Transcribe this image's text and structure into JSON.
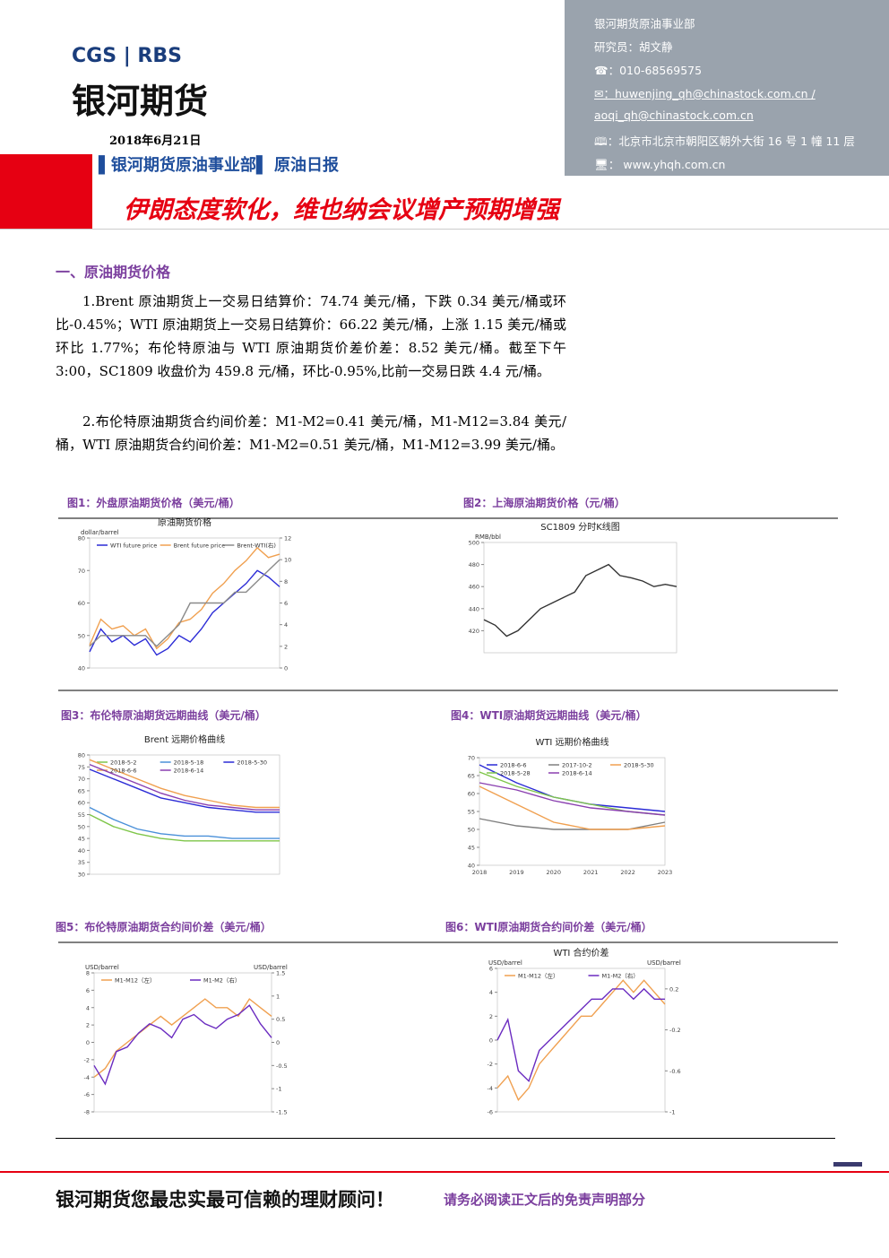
{
  "header": {
    "logo_en": "CGS | RBS",
    "logo_cn": "银河期货",
    "date": "2018年6月21日",
    "dept_line": "▌银河期货原油事业部▌ 原油日报",
    "title": "伊朗态度软化，维也纳会议增产预期增强"
  },
  "contact": {
    "dept": "银河期货原油事业部",
    "researcher": "研究员：胡文静",
    "phone": "☎：010-68569575",
    "email1": "✉：huwenjing_qh@chinastock.com.cn /",
    "email2": "aoqi_qh@chinastock.com.cn",
    "address": "🕮：北京市北京市朝阳区朝外大街 16 号 1 幢 11 层",
    "web": "🖥：  www.yhqh.com.cn"
  },
  "section": {
    "heading": "一、原油期货价格",
    "paragraphs": [
      "1.Brent 原油期货上一交易日结算价：74.74 美元/桶，下跌 0.34 美元/桶或环比-0.45%；WTI 原油期货上一交易日结算价：66.22 美元/桶，上涨 1.15 美元/桶或环比 1.77%；布伦特原油与 WTI 原油期货价差价差：8.52 美元/桶。截至下午 3:00，SC1809 收盘价为 459.8 元/桶，环比-0.95%,比前一交易日跌 4.4 元/桶。",
      "2.布伦特原油期货合约间价差：M1-M2=0.41 美元/桶，M1-M12=3.84 美元/桶，WTI 原油期货合约间价差：M1-M2=0.51 美元/桶，M1-M12=3.99 美元/桶。"
    ]
  },
  "figures": [
    {
      "caption": "图1：外盘原油期货价格（美元/桶）",
      "chart": {
        "type": "line",
        "title": "原油期货价格",
        "ylabel": "dollar/barrel",
        "categories": [
          null,
          null,
          null,
          null,
          null,
          null,
          null,
          null,
          null,
          null,
          null,
          null,
          null,
          null,
          null,
          null,
          null,
          null
        ],
        "ylim": [
          40,
          80
        ],
        "yticks": [
          40,
          50,
          60,
          70,
          80
        ],
        "y2lim": [
          0,
          12
        ],
        "y2ticks": [
          0,
          2,
          4,
          6,
          8,
          10,
          12
        ],
        "series": [
          {
            "name": "WTI future price",
            "color": "#2b2bd6",
            "values": [
              45,
              52,
              48,
              50,
              47,
              49,
              44,
              46,
              50,
              48,
              52,
              57,
              60,
              63,
              66,
              70,
              68,
              65
            ]
          },
          {
            "name": "Brent future price",
            "color": "#f0a050",
            "values": [
              47,
              55,
              52,
              53,
              50,
              52,
              46,
              49,
              54,
              55,
              58,
              63,
              66,
              70,
              73,
              77,
              74,
              75
            ]
          },
          {
            "name": "Brent-WTI(右)",
            "color": "#8a8a8a",
            "axis": "y2",
            "values": [
              2,
              3,
              3,
              3,
              3,
              3,
              2,
              3,
              4,
              6,
              6,
              6,
              6,
              7,
              7,
              8,
              9,
              10
            ]
          }
        ]
      }
    },
    {
      "caption": "图2：上海原油期货价格（元/桶）",
      "chart": {
        "type": "line",
        "title": "SC1809 分时K线图",
        "ylabel": "RMB/bbl",
        "categories": [
          null,
          null,
          null,
          null,
          null,
          null,
          null,
          null,
          null,
          null,
          null,
          null,
          null,
          null,
          null,
          null,
          null,
          null
        ],
        "ylim": [
          400,
          500
        ],
        "yticks": [
          420,
          440,
          460,
          480,
          500
        ],
        "series": [
          {
            "color": "#333333",
            "values": [
              430,
              425,
              415,
              420,
              430,
              440,
              445,
              450,
              455,
              470,
              475,
              480,
              470,
              468,
              465,
              460,
              462,
              460
            ]
          }
        ]
      }
    },
    {
      "caption": "图3：布伦特原油期货远期曲线（美元/桶）",
      "chart": {
        "type": "line",
        "title": "Brent 远期价格曲线",
        "categories": [
          null,
          null,
          null,
          null,
          null,
          null,
          null,
          null,
          null
        ],
        "ylim": [
          30,
          80
        ],
        "yticks": [
          30,
          35,
          40,
          45,
          50,
          55,
          60,
          65,
          70,
          75,
          80
        ],
        "series": [
          {
            "name": "2018-5-2",
            "color": "#7fc64a",
            "values": [
              55,
              50,
              47,
              45,
              44,
              44,
              44,
              44,
              44
            ]
          },
          {
            "name": "2018-5-18",
            "color": "#4a90d9",
            "values": [
              58,
              53,
              49,
              47,
              46,
              46,
              45,
              45,
              45
            ]
          },
          {
            "name": "2018-5-30",
            "color": "#2b2bd6",
            "values": [
              74,
              70,
              66,
              62,
              60,
              58,
              57,
              56,
              56
            ]
          },
          {
            "name": "2018-6-6",
            "color": "#f0a050",
            "values": [
              78,
              74,
              70,
              66,
              63,
              61,
              59,
              58,
              58
            ]
          },
          {
            "name": "2018-6-14",
            "color": "#8a3fb0",
            "values": [
              76,
              72,
              68,
              64,
              61,
              59,
              58,
              57,
              57
            ]
          }
        ]
      }
    },
    {
      "caption": "图4：WTI原油期货远期曲线（美元/桶）",
      "chart": {
        "type": "line",
        "title": "WTI 远期价格曲线",
        "categories": [
          "2018",
          "2019",
          "2020",
          "2021",
          "2022",
          "2023"
        ],
        "ylim": [
          40,
          70
        ],
        "yticks": [
          40,
          45,
          50,
          55,
          60,
          65,
          70
        ],
        "series": [
          {
            "name": "2018-6-6",
            "color": "#2b2bd6",
            "values": [
              68,
              63,
              59,
              57,
              56,
              55
            ]
          },
          {
            "name": "2017-10-2",
            "color": "#7f7f7f",
            "values": [
              53,
              51,
              50,
              50,
              50,
              52
            ]
          },
          {
            "name": "2018-5-30",
            "color": "#f0a050",
            "values": [
              62,
              57,
              52,
              50,
              50,
              51
            ]
          },
          {
            "name": "2018-5-28",
            "color": "#7fc64a",
            "values": [
              66,
              62,
              59,
              57,
              55,
              54
            ]
          },
          {
            "name": "2018-6-14",
            "color": "#8a3fb0",
            "values": [
              63,
              61,
              58,
              56,
              55,
              54
            ]
          }
        ]
      }
    },
    {
      "caption": "图5：布伦特原油期货合约间价差（美元/桶）",
      "chart": {
        "type": "line",
        "ylabel": "USD/barrel",
        "y2label": "USD/barrel",
        "categories": [
          null,
          null,
          null,
          null,
          null,
          null,
          null,
          null,
          null,
          null,
          null,
          null,
          null,
          null,
          null,
          null,
          null
        ],
        "ylim": [
          -8,
          8
        ],
        "yticks": [
          -8,
          -6,
          -4,
          -2,
          0,
          2,
          4,
          6,
          8
        ],
        "y2lim": [
          -1.5,
          1.5
        ],
        "y2ticks": [
          -1.5,
          -1,
          -0.5,
          0,
          0.5,
          1,
          1.5
        ],
        "series": [
          {
            "name": "M1-M12（左）",
            "color": "#f0a050",
            "values": [
              -4,
              -3,
              -1,
              0,
              1,
              2,
              3,
              2,
              3,
              4,
              5,
              4,
              4,
              3,
              5,
              4,
              3
            ]
          },
          {
            "name": "M1-M2（右）",
            "color": "#6a2bc0",
            "axis": "y2",
            "values": [
              -0.5,
              -0.9,
              -0.2,
              -0.1,
              0.2,
              0.4,
              0.3,
              0.1,
              0.5,
              0.6,
              0.4,
              0.3,
              0.5,
              0.6,
              0.8,
              0.4,
              0.1
            ]
          }
        ]
      }
    },
    {
      "caption": "图6：WTI原油期货合约间价差（美元/桶）",
      "chart": {
        "type": "line",
        "title": "WTI 合约价差",
        "ylabel": "USD/barrel",
        "y2label": "USD/barrel",
        "categories": [
          null,
          null,
          null,
          null,
          null,
          null,
          null,
          null,
          null,
          null,
          null,
          null,
          null,
          null,
          null,
          null,
          null
        ],
        "ylim": [
          -6,
          6
        ],
        "yticks": [
          -6,
          -4,
          -2,
          0,
          2,
          4,
          6
        ],
        "y2lim": [
          -1,
          0.4
        ],
        "y2ticks": [
          -1,
          -0.6,
          -0.2,
          0.2
        ],
        "series": [
          {
            "name": "M1-M12（左）",
            "color": "#f0a050",
            "values": [
              -4,
              -3,
              -5,
              -4,
              -2,
              -1,
              0,
              1,
              2,
              2,
              3,
              4,
              5,
              4,
              5,
              4,
              3
            ]
          },
          {
            "name": "M1-M2（右）",
            "color": "#6a2bc0",
            "axis": "y2",
            "values": [
              -0.3,
              -0.1,
              -0.6,
              -0.7,
              -0.4,
              -0.3,
              -0.2,
              -0.1,
              0,
              0.1,
              0.1,
              0.2,
              0.2,
              0.1,
              0.2,
              0.1,
              0.1
            ]
          }
        ]
      }
    }
  ],
  "footer": {
    "slogan": "银河期货您最忠实最可信赖的理财顾问！",
    "disclaimer": "请务必阅读正文后的免责声明部分"
  }
}
